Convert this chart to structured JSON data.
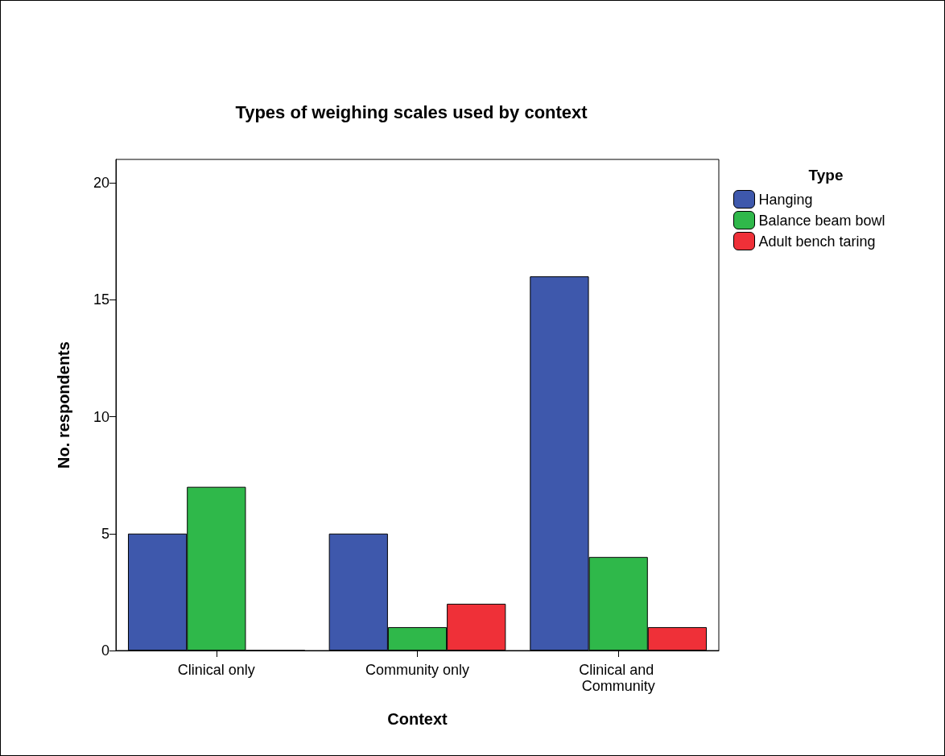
{
  "chart_data": {
    "type": "bar",
    "title": "Types of weighing scales used by context",
    "xlabel": "Context",
    "ylabel": "No. respondents",
    "legend_title": "Type",
    "categories": [
      "Clinical only",
      "Community only",
      "Clinical and Community"
    ],
    "series": [
      {
        "name": "Hanging",
        "color": "#3e58ac",
        "values": [
          5,
          5,
          16
        ]
      },
      {
        "name": "Balance beam bowl",
        "color": "#2fb84a",
        "values": [
          7,
          1,
          4
        ]
      },
      {
        "name": "Adult bench taring",
        "color": "#ef3038",
        "values": [
          0,
          2,
          1
        ]
      }
    ],
    "ylim": [
      0,
      21
    ],
    "yticks": [
      0,
      5,
      10,
      15,
      20
    ],
    "grid": false,
    "legend": "right"
  }
}
